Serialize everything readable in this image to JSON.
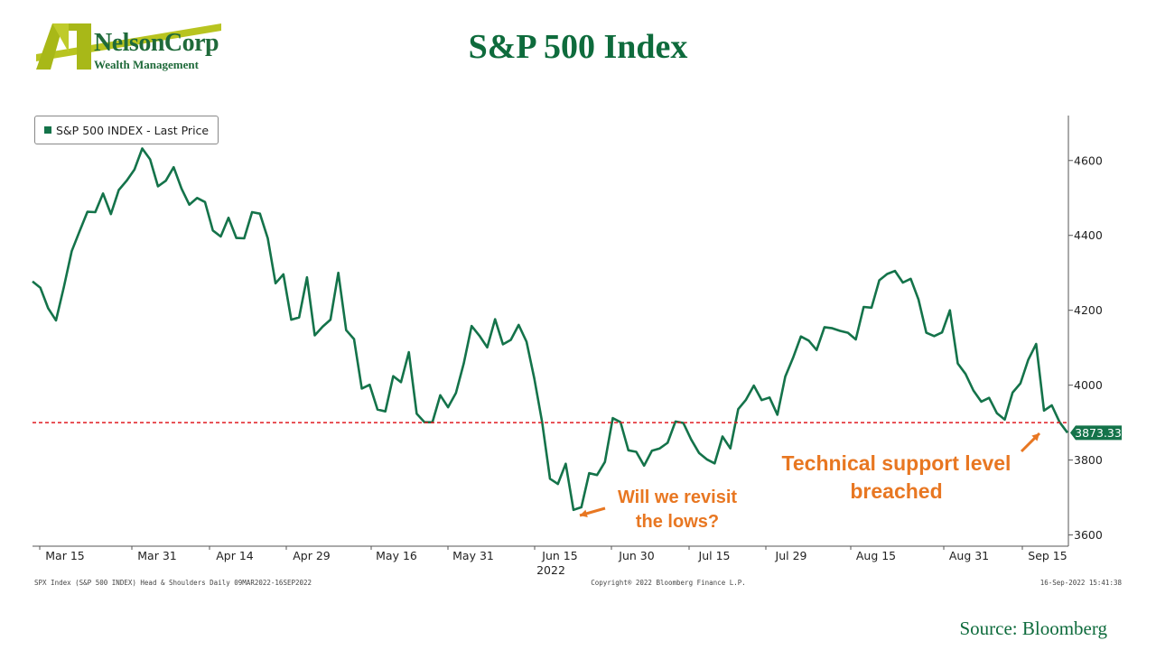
{
  "logo": {
    "name": "NelsonCorp",
    "subtitle": "Wealth Management"
  },
  "title": "S&P 500 Index",
  "legend": "S&P 500 INDEX - Last Price",
  "annotations": {
    "lows": [
      "Will we revisit",
      "the lows?"
    ],
    "support": [
      "Technical support level",
      "breached"
    ]
  },
  "last_value_label": "3873.33",
  "footer": {
    "left": "SPX Index (S&P 500 INDEX) Head & Shoulders  Daily 09MAR2022-16SEP2022",
    "middle": "Copyright® 2022 Bloomberg Finance L.P.",
    "right": "16-Sep-2022 15:41:38"
  },
  "source": "Source: Bloomberg",
  "colors": {
    "line": "#14734a",
    "support": "#e11b22",
    "annotation": "#e87722",
    "title": "#0e6b3c"
  },
  "chart_data": {
    "type": "line",
    "x_tick_labels": [
      "Mar 15",
      "Mar 31",
      "Apr 14",
      "Apr 29",
      "May 16",
      "May 31",
      "Jun 15",
      "Jun 30",
      "Jul 15",
      "Jul 29",
      "Aug 15",
      "Aug 31",
      "Sep 15"
    ],
    "x_sub_label": "2022",
    "y_ticks": [
      3600,
      3800,
      4000,
      4200,
      4400,
      4600
    ],
    "ylim": [
      3570,
      4720
    ],
    "support_level": 3900,
    "series": [
      {
        "name": "S&P 500 INDEX - Last Price",
        "values": [
          4277,
          4260,
          4205,
          4173,
          4262,
          4358,
          4411,
          4463,
          4462,
          4512,
          4457,
          4521,
          4546,
          4576,
          4632,
          4603,
          4531,
          4546,
          4582,
          4525,
          4482,
          4500,
          4489,
          4413,
          4397,
          4447,
          4393,
          4392,
          4462,
          4458,
          4392,
          4272,
          4296,
          4175,
          4181,
          4288,
          4133,
          4156,
          4175,
          4300,
          4147,
          4123,
          3991,
          4001,
          3935,
          3930,
          4024,
          4008,
          4088,
          3924,
          3901,
          3901,
          3973,
          3941,
          3979,
          4058,
          4158,
          4132,
          4101,
          4176,
          4109,
          4121,
          4161,
          4116,
          4018,
          3901,
          3750,
          3736,
          3790,
          3667,
          3674,
          3765,
          3760,
          3795,
          3912,
          3901,
          3826,
          3822,
          3785,
          3825,
          3831,
          3846,
          3903,
          3899,
          3855,
          3819,
          3802,
          3791,
          3863,
          3831,
          3936,
          3961,
          3999,
          3960,
          3967,
          3921,
          4023,
          4073,
          4130,
          4119,
          4094,
          4155,
          4152,
          4145,
          4140,
          4122,
          4209,
          4207,
          4280,
          4297,
          4305,
          4274,
          4284,
          4229,
          4140,
          4131,
          4141,
          4200,
          4058,
          4030,
          3986,
          3956,
          3966,
          3925,
          3908,
          3980,
          4005,
          4068,
          4110,
          3932,
          3946,
          3901,
          3873
        ]
      }
    ]
  }
}
